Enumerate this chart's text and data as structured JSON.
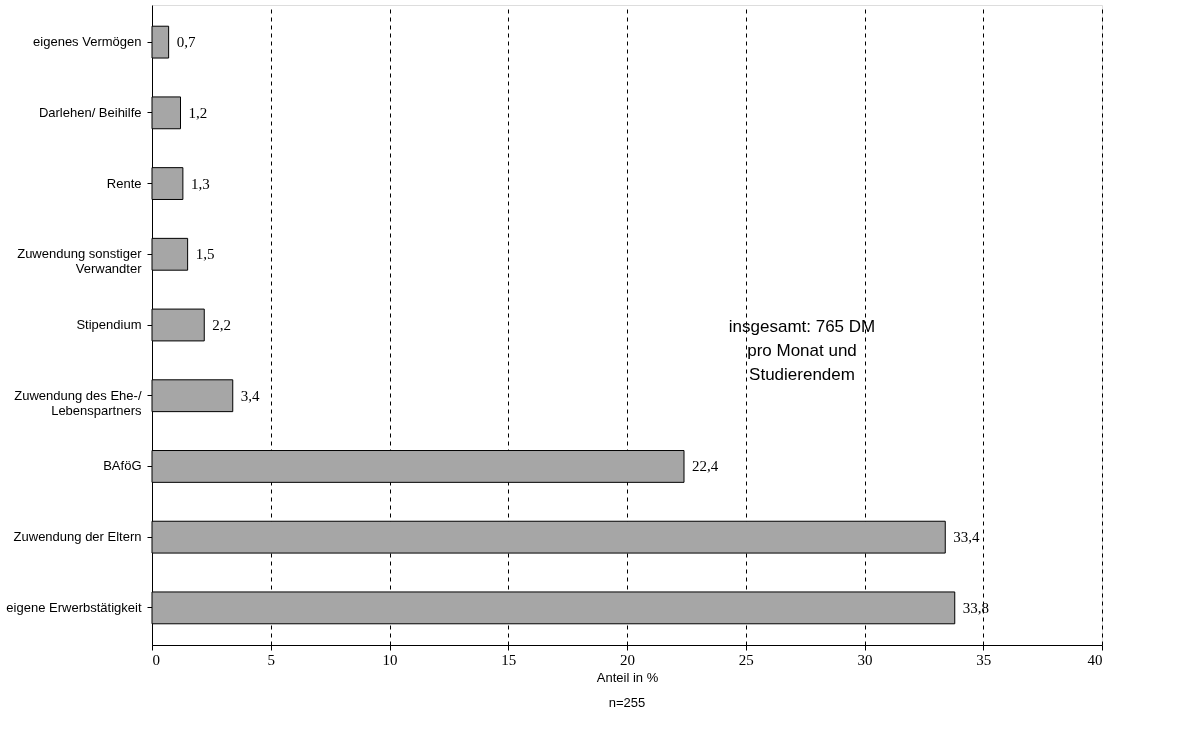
{
  "chart_data": {
    "type": "bar",
    "orientation": "horizontal",
    "categories": [
      "eigenes Vermögen",
      "Darlehen/ Beihilfe",
      "Rente",
      "Zuwendung sonstiger\nVerwandter",
      "Stipendium",
      "Zuwendung des Ehe-/\nLebenspartners",
      "BAföG",
      "Zuwendung der Eltern",
      "eigene Erwerbstätigkeit"
    ],
    "values": [
      0.7,
      1.2,
      1.3,
      1.5,
      2.2,
      3.4,
      22.4,
      33.4,
      33.8
    ],
    "value_labels": [
      "0,7",
      "1,2",
      "1,3",
      "1,5",
      "2,2",
      "3,4",
      "22,4",
      "33,4",
      "33,8"
    ],
    "color": "#a6a6a6",
    "xlabel": "Anteil in %",
    "xlim": [
      0,
      40
    ],
    "xticks": [
      0,
      5,
      10,
      15,
      20,
      25,
      30,
      35,
      40
    ],
    "grid": "x",
    "annotations": [
      "insgesamt: 765 DM\npro Monat und\nStudierendem",
      "n=255"
    ]
  }
}
